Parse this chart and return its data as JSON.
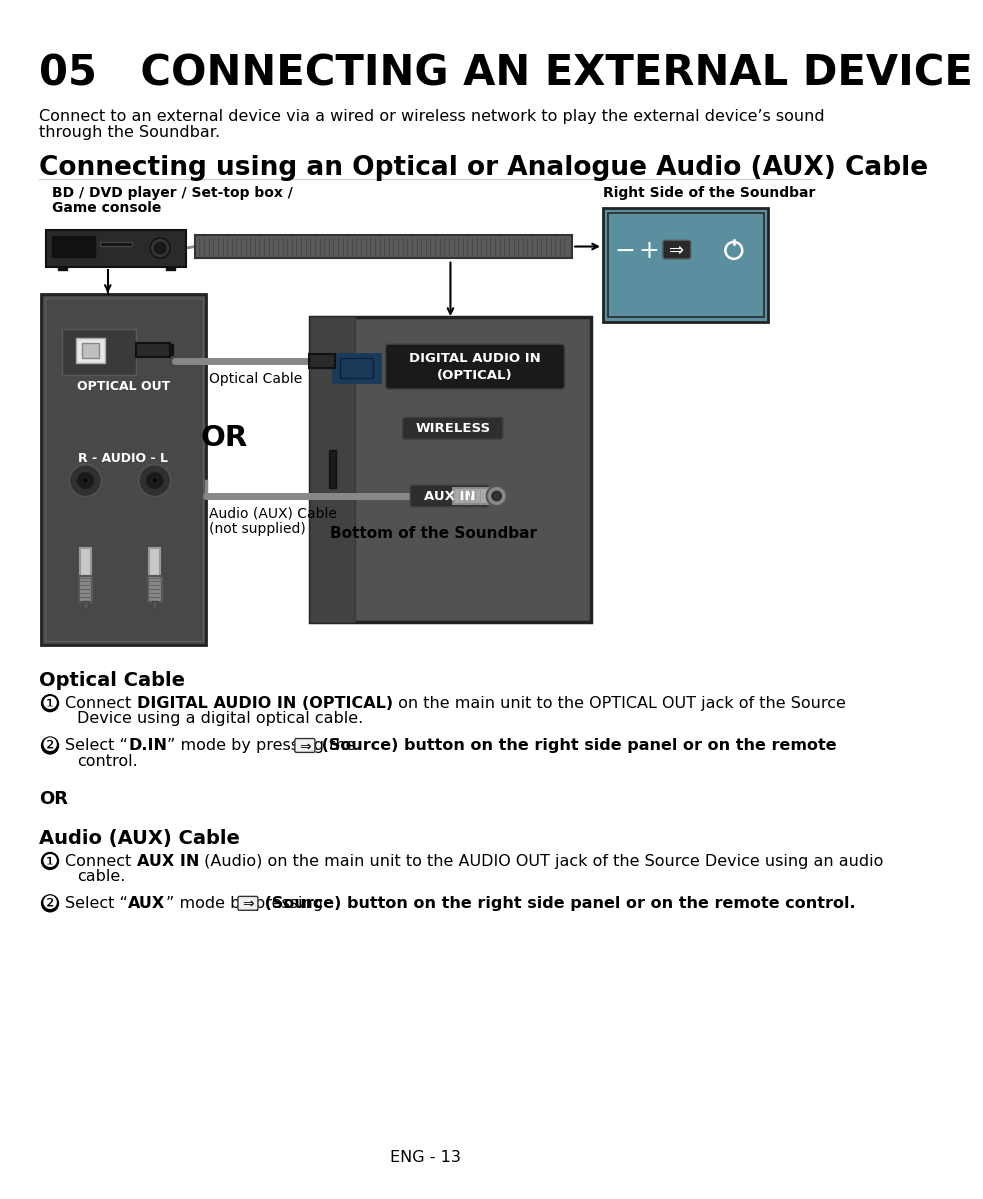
{
  "title": "05   CONNECTING AN EXTERNAL DEVICE",
  "subtitle": "Connecting using an Optical or Analogue Audio (AUX) Cable",
  "intro_line1": "Connect to an external device via a wired or wireless network to play the external device’s sound",
  "intro_line2": "through the Soundbar.",
  "label_bd": "BD / DVD player / Set-top box /",
  "label_bd2": "Game console",
  "label_right": "Right Side of the Soundbar",
  "label_optical_out": "OPTICAL OUT",
  "label_optical_cable": "Optical Cable",
  "label_or_diagram": "OR",
  "label_audio_cable1": "Audio (AUX) Cable",
  "label_audio_cable2": "(not supplied)",
  "label_bottom": "Bottom of the Soundbar",
  "label_r_audio_l": "R - AUDIO - L",
  "label_digital_audio": "DIGITAL AUDIO IN\n(OPTICAL)",
  "label_wireless": "WIRELESS",
  "label_aux_in": "AUX IN",
  "footer": "ENG - 13",
  "bg_color": "#ffffff"
}
